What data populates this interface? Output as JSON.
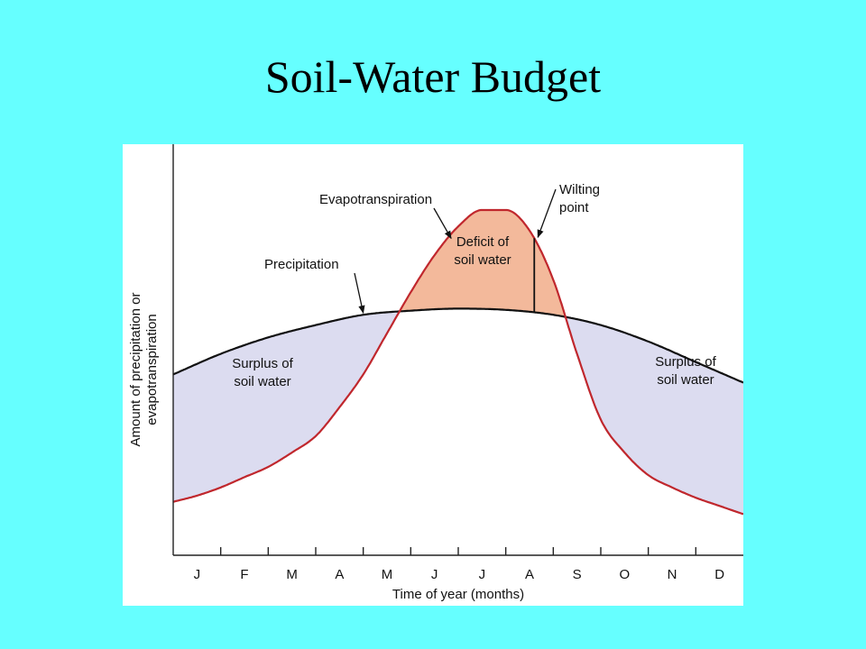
{
  "slide": {
    "title": "Soil-Water Budget"
  },
  "colors": {
    "background": "#66ffff",
    "precipitation_line": "#111111",
    "evapotranspiration_line": "#c0272d",
    "surplus_fill": "#dcdcf0",
    "deficit_fill": "#f3b99b"
  },
  "chart_data": {
    "type": "line",
    "title": "",
    "xlabel": "Time of year (months)",
    "ylabel": "Amount of precipitation or evapotranspiration",
    "ylabel_lines": [
      "Amount of precipitation or",
      "evapotranspiration"
    ],
    "categories": [
      "J",
      "F",
      "M",
      "A",
      "M",
      "J",
      "J",
      "A",
      "S",
      "O",
      "N",
      "D"
    ],
    "grid": false,
    "series": [
      {
        "name": "Precipitation",
        "x": [
          0,
          1,
          2,
          3,
          4,
          5,
          6,
          7,
          8,
          9,
          10,
          11,
          12
        ],
        "values": [
          44,
          49,
          53,
          56,
          58.5,
          59.5,
          60,
          59.7,
          58.5,
          56,
          52,
          47,
          42
        ]
      },
      {
        "name": "Evapotranspiration",
        "x": [
          0,
          0.5,
          1,
          1.5,
          2,
          2.5,
          3,
          3.5,
          4,
          4.5,
          5,
          5.5,
          6,
          6.5,
          7,
          7.5,
          8,
          8.5,
          9,
          9.5,
          10,
          10.5,
          11,
          11.5,
          12
        ],
        "values": [
          13,
          14.5,
          16.5,
          19,
          21.5,
          25,
          29,
          36,
          44,
          54,
          64,
          73,
          80,
          84,
          84,
          79,
          67,
          49,
          33,
          25,
          19.5,
          16.5,
          14,
          12,
          10
        ]
      }
    ],
    "wilting_point_x": 7.6,
    "annotations": {
      "evapotranspiration": "Evapotranspiration",
      "precipitation": "Precipitation",
      "wilting_point": [
        "Wilting",
        "point"
      ],
      "deficit": [
        "Deficit of",
        "soil water"
      ],
      "surplus_left": [
        "Surplus of",
        "soil water"
      ],
      "surplus_right": [
        "Surplus of",
        "soil water"
      ]
    },
    "ylim": [
      0,
      100
    ],
    "xlim": [
      0,
      12
    ]
  }
}
